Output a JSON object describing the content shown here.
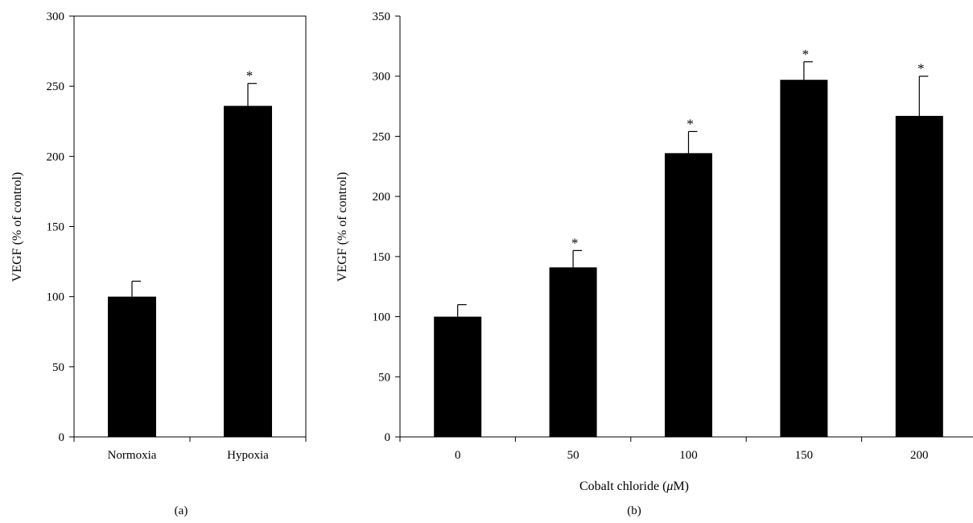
{
  "chart_data": [
    {
      "panel": "(a)",
      "type": "bar",
      "title": "",
      "categories": [
        "Normoxia",
        "Hypoxia"
      ],
      "values": [
        100,
        236
      ],
      "errors": [
        11,
        16
      ],
      "significance": [
        "",
        "*"
      ],
      "xlabel": "",
      "ylabel": "VEGF (% of control)",
      "ylim": [
        0,
        300
      ],
      "yticks": [
        "0",
        "50",
        "100",
        "150",
        "200",
        "250",
        "300"
      ],
      "bar_color": "#000000",
      "grid": false,
      "legend": "none"
    },
    {
      "panel": "(b)",
      "type": "bar",
      "title": "",
      "categories": [
        "0",
        "50",
        "100",
        "150",
        "200"
      ],
      "values": [
        100,
        141,
        236,
        297,
        267
      ],
      "errors": [
        10,
        14,
        18,
        15,
        33
      ],
      "significance": [
        "",
        "*",
        "*",
        "*",
        "*"
      ],
      "xlabel": "Cobalt chloride (μM)",
      "xlabel_parts": [
        "Cobalt chloride (",
        "μ",
        "M)"
      ],
      "ylabel": "VEGF (% of control)",
      "ylim": [
        0,
        350
      ],
      "yticks": [
        "0",
        "50",
        "100",
        "150",
        "200",
        "250",
        "300",
        "350"
      ],
      "bar_color": "#000000",
      "grid": false,
      "legend": "none"
    }
  ]
}
